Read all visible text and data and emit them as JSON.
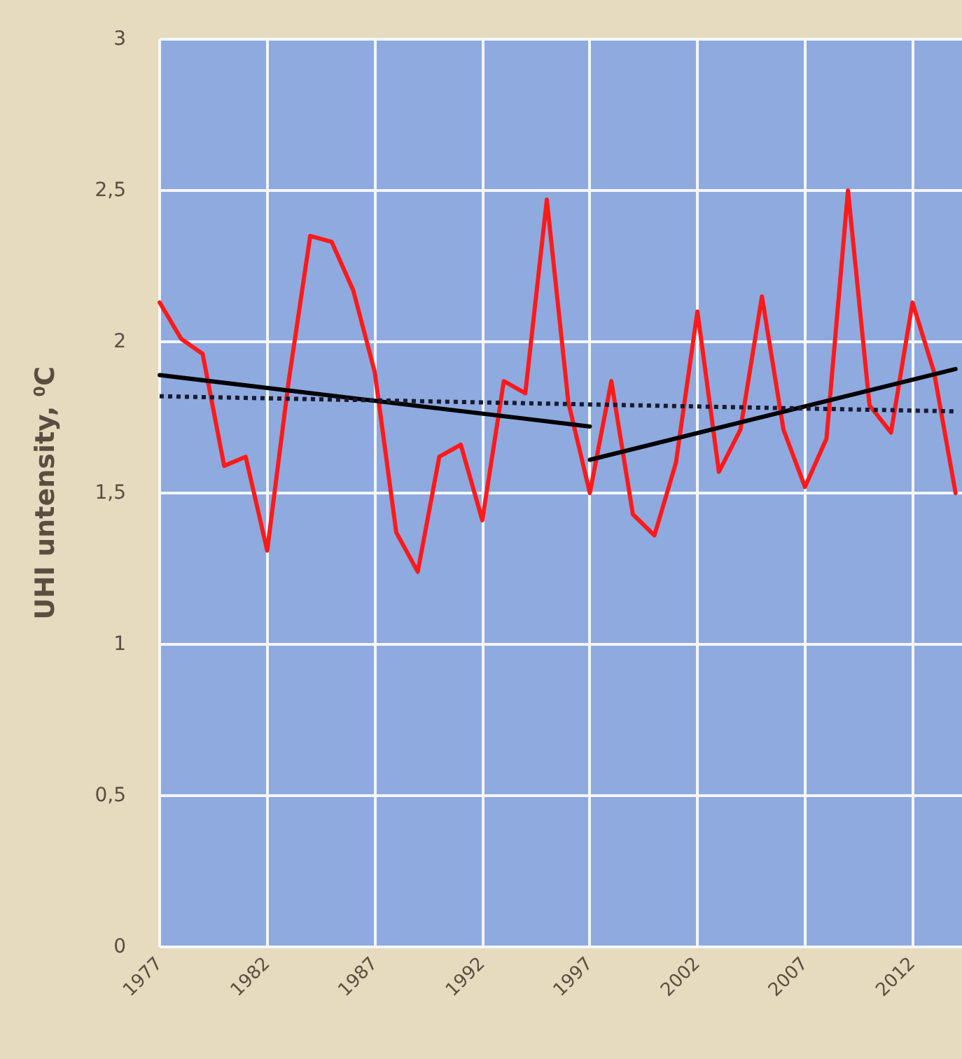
{
  "chart_data": {
    "type": "line",
    "ylabel": "UHI untensity, $^{0}$C",
    "xlim": [
      1977,
      2014.3
    ],
    "xticks": [
      1977,
      1982,
      1987,
      1992,
      1997,
      2002,
      2007,
      2012
    ],
    "ylim": [
      0,
      3
    ],
    "yticks": [
      0,
      {
        "value": 0.5,
        "label": "0,5"
      },
      1,
      {
        "value": 1.5,
        "label": "1,5"
      },
      2,
      {
        "value": 2.5,
        "label": "2,5"
      },
      3
    ],
    "grid": true,
    "marker": "none",
    "series": [
      {
        "color": "#ff1a1a",
        "line_style": "solid",
        "x": [
          1977,
          1978,
          1979,
          1980,
          1981,
          1982,
          1983,
          1984,
          1985,
          1986,
          1987,
          1988,
          1989,
          1990,
          1991,
          1992,
          1993,
          1994,
          1995,
          1996,
          1997,
          1998,
          1999,
          2000,
          2001,
          2002,
          2003,
          2004,
          2005,
          2006,
          2007,
          2008,
          2009,
          2010,
          2011,
          2012,
          2013,
          2014
        ],
        "values": [
          2.13,
          2.01,
          1.96,
          1.59,
          1.62,
          1.31,
          1.87,
          2.35,
          2.33,
          2.17,
          1.9,
          1.37,
          1.24,
          1.62,
          1.66,
          1.41,
          1.87,
          1.83,
          2.47,
          1.8,
          1.5,
          1.87,
          1.43,
          1.36,
          1.6,
          2.1,
          1.57,
          1.71,
          2.15,
          1.71,
          1.52,
          1.68,
          2.5,
          1.79,
          1.7,
          2.13,
          1.9,
          1.5
        ]
      },
      {
        "color": "#000000",
        "line_style": "solid",
        "x": [
          1977,
          1997
        ],
        "values": [
          1.89,
          1.72
        ]
      },
      {
        "color": "#000000",
        "line_style": "solid",
        "x": [
          1997,
          2014
        ],
        "values": [
          1.61,
          1.91
        ]
      },
      {
        "color": "#1a1a2e",
        "line_style": "dotted",
        "x": [
          1977,
          2014
        ],
        "values": [
          1.82,
          1.77
        ]
      }
    ]
  }
}
